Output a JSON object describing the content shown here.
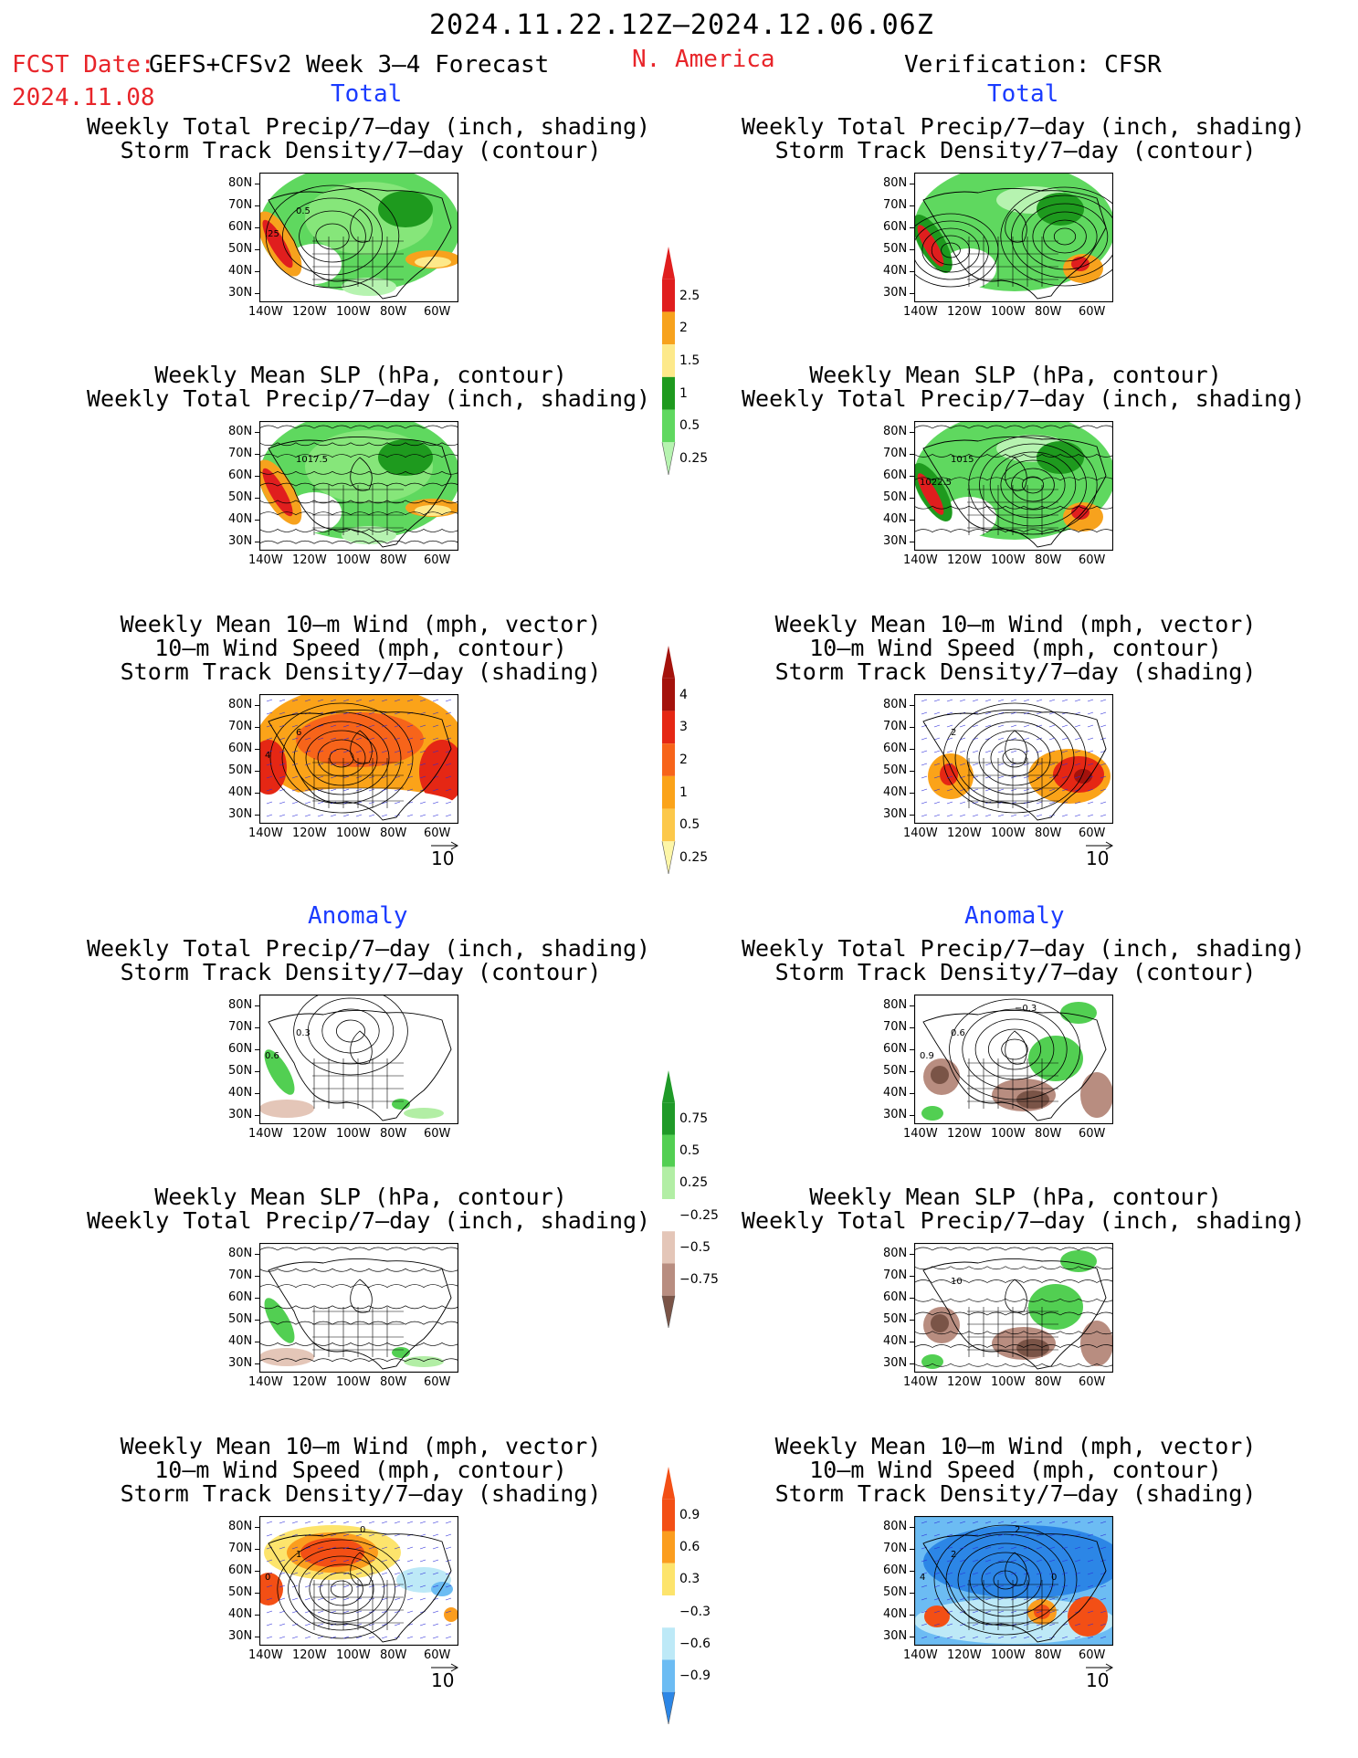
{
  "header": {
    "date_range": "2024.11.22.12Z–2024.12.06.06Z",
    "fcst_prefix": "FCST Date:",
    "product": "GEFS+CFSv2 Week 3–4 Forecast",
    "fcst_date": "2024.11.08",
    "region": "N. America",
    "verification": "Verification: CFSR"
  },
  "sections": {
    "total_left": "Total",
    "total_right": "Total",
    "anomaly_left": "Anomaly",
    "anomaly_right": "Anomaly"
  },
  "panel_titles": {
    "precip_storm": [
      "Weekly Total Precip/7–day (inch, shading)",
      "Storm Track Density/7–day (contour)"
    ],
    "slp_precip": [
      "Weekly Mean SLP (hPa, contour)",
      "Weekly Total Precip/7–day (inch, shading)"
    ],
    "wind_storm": [
      "Weekly Mean 10–m Wind (mph, vector)",
      "10–m Wind Speed (mph, contour)",
      "Storm Track Density/7–day (shading)"
    ]
  },
  "map_axes": {
    "lat_ticks": [
      "80N",
      "70N",
      "60N",
      "50N",
      "40N",
      "30N"
    ],
    "lon_ticks": [
      "140W",
      "120W",
      "100W",
      "80W",
      "60W"
    ]
  },
  "vector_ref": "10",
  "colorbars": {
    "precip_total": {
      "labels": [
        "2.5",
        "2",
        "1.5",
        "1",
        "0.5",
        "0.25"
      ],
      "colors": [
        "#e01e1e",
        "#f7a21d",
        "#fde98a",
        "#1e9a1e",
        "#5fd85f",
        "#b6f3b0"
      ]
    },
    "storm_total": {
      "labels": [
        "4",
        "3",
        "2",
        "1",
        "0.5",
        "0.25"
      ],
      "colors": [
        "#a4120c",
        "#e52714",
        "#f7641a",
        "#fba319",
        "#fcc84a",
        "#fdf6a7"
      ]
    },
    "precip_anom": {
      "labels": [
        "0.75",
        "0.5",
        "0.25",
        "−0.25",
        "−0.5",
        "−0.75"
      ],
      "colors": [
        "#1f9a28",
        "#52cf52",
        "#b2eea5",
        "#ffffff",
        "#e4c6b8",
        "#b88d80",
        "#7a5447"
      ]
    },
    "storm_anom": {
      "labels": [
        "0.9",
        "0.6",
        "0.3",
        "−0.3",
        "−0.6",
        "−0.9"
      ],
      "colors": [
        "#f34f15",
        "#fb9d1e",
        "#fde46c",
        "#ffffff",
        "#bde9f7",
        "#6cbcf3",
        "#2c86e6"
      ]
    }
  },
  "contour_labels": {
    "L1": [
      "0.5",
      ".25"
    ],
    "R4": [
      "1015",
      "1022.5"
    ],
    "L2": [
      "1017.5"
    ],
    "L3": [
      "6",
      "4"
    ],
    "R3": [
      "2"
    ],
    "L4": [
      "0.3",
      "0.6"
    ],
    "R4a": [
      "0.6",
      "0.9",
      "−0.3"
    ],
    "R5": [
      "10"
    ],
    "L6": [
      "1",
      "0",
      "0"
    ],
    "R6": [
      "2",
      "4",
      "2",
      "0"
    ]
  },
  "chart_data": {
    "type": "heatmap",
    "description_region": "N. America",
    "panels": [
      {
        "column": "forecast",
        "section": "Total",
        "fields": [
          "Weekly Total Precip/7–day",
          "Storm Track Density/7–day"
        ]
      },
      {
        "column": "verification",
        "section": "Total",
        "fields": [
          "Weekly Total Precip/7–day",
          "Storm Track Density/7–day"
        ]
      },
      {
        "column": "forecast",
        "section": "Total",
        "fields": [
          "Weekly Mean SLP",
          "Weekly Total Precip/7–day"
        ]
      },
      {
        "column": "verification",
        "section": "Total",
        "fields": [
          "Weekly Mean SLP",
          "Weekly Total Precip/7–day"
        ]
      },
      {
        "column": "forecast",
        "section": "Total",
        "fields": [
          "Weekly Mean 10–m Wind",
          "10–m Wind Speed",
          "Storm Track Density/7–day"
        ]
      },
      {
        "column": "verification",
        "section": "Total",
        "fields": [
          "Weekly Mean 10–m Wind",
          "10–m Wind Speed",
          "Storm Track Density/7–day"
        ]
      },
      {
        "column": "forecast",
        "section": "Anomaly",
        "fields": [
          "Weekly Total Precip/7–day",
          "Storm Track Density/7–day"
        ]
      },
      {
        "column": "verification",
        "section": "Anomaly",
        "fields": [
          "Weekly Total Precip/7–day",
          "Storm Track Density/7–day"
        ]
      },
      {
        "column": "forecast",
        "section": "Anomaly",
        "fields": [
          "Weekly Mean SLP",
          "Weekly Total Precip/7–day"
        ]
      },
      {
        "column": "verification",
        "section": "Anomaly",
        "fields": [
          "Weekly Mean SLP",
          "Weekly Total Precip/7–day"
        ]
      },
      {
        "column": "forecast",
        "section": "Anomaly",
        "fields": [
          "Weekly Mean 10–m Wind",
          "10–m Wind Speed",
          "Storm Track Density/7–day"
        ]
      },
      {
        "column": "verification",
        "section": "Anomaly",
        "fields": [
          "Weekly Mean 10–m Wind",
          "10–m Wind Speed",
          "Storm Track Density/7–day"
        ]
      }
    ],
    "x_range_deg": [
      -145,
      -55
    ],
    "y_range_deg": [
      25,
      85
    ]
  }
}
